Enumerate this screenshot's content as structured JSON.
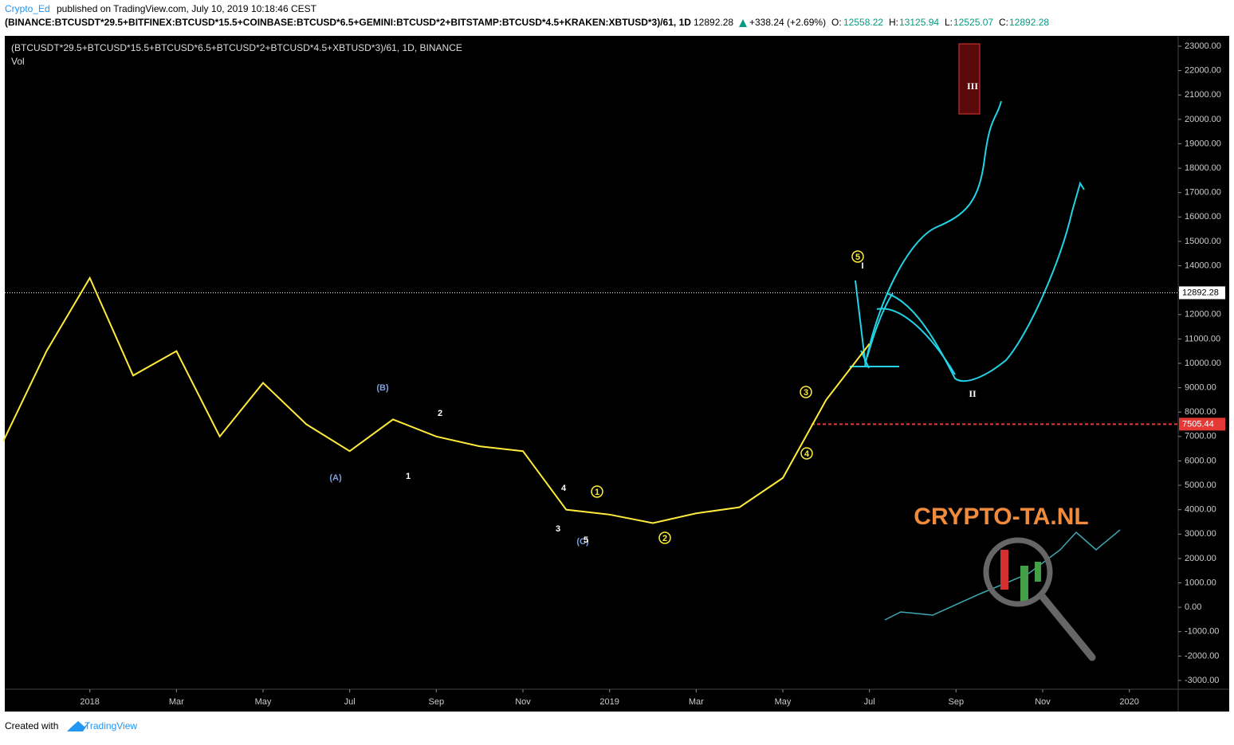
{
  "header": {
    "publisher": "Crypto_Ed",
    "published": "published on TradingView.com, July 10, 2019 10:18:46 CEST",
    "symbol": "(BINANCE:BTCUSDT*29.5+BITFINEX:BTCUSD*15.5+COINBASE:BTCUSD*6.5+GEMINI:BTCUSD*2+BITSTAMP:BTCUSD*4.5+KRAKEN:XBTUSD*3)/61, 1D",
    "last": "12892.28",
    "change": "+338.24 (+2.69%)",
    "open_label": "O:",
    "open": "12558.22",
    "high_label": "H:",
    "high": "13125.94",
    "low_label": "L:",
    "low": "12525.07",
    "close_label": "C:",
    "close": "12892.28"
  },
  "chart_data": {
    "type": "line",
    "legend_title": "(BTCUSDT*29.5+BTCUSD*15.5+BTCUSD*6.5+BTCUSD*2+BTCUSD*4.5+XBTUSD*3)/61, 1D, BINANCE",
    "volume_label": "Vol",
    "x": [
      "2017-11",
      "2017-12",
      "2018-01",
      "2018-02",
      "2018-03",
      "2018-04",
      "2018-05",
      "2018-06",
      "2018-07",
      "2018-08",
      "2018-09",
      "2018-10",
      "2018-11",
      "2018-12",
      "2019-01",
      "2019-02",
      "2019-03",
      "2019-04",
      "2019-05",
      "2019-06",
      "2019-07"
    ],
    "series": [
      {
        "color": "#ffeb3b",
        "values": [
          6800,
          10500,
          13500,
          9500,
          10500,
          7000,
          9200,
          7500,
          6400,
          7700,
          7000,
          6600,
          6400,
          4000,
          3800,
          3450,
          3850,
          4100,
          5300,
          8500,
          10800
        ]
      }
    ],
    "xlim": [
      "2017-11",
      "2020-02"
    ],
    "xticks": [
      {
        "value": "2018-01",
        "label": "2018"
      },
      {
        "value": "2018-03",
        "label": "Mar"
      },
      {
        "value": "2018-05",
        "label": "May"
      },
      {
        "value": "2018-07",
        "label": "Jul"
      },
      {
        "value": "2018-09",
        "label": "Sep"
      },
      {
        "value": "2018-11",
        "label": "Nov"
      },
      {
        "value": "2019-01",
        "label": "2019"
      },
      {
        "value": "2019-03",
        "label": "Mar"
      },
      {
        "value": "2019-05",
        "label": "May"
      },
      {
        "value": "2019-07",
        "label": "Jul"
      },
      {
        "value": "2019-09",
        "label": "Sep"
      },
      {
        "value": "2019-11",
        "label": "Nov"
      },
      {
        "value": "2020-01",
        "label": "2020"
      }
    ],
    "ylim": [
      -3360,
      23425
    ],
    "yticks": [
      {
        "value": -3000,
        "label": "-3000.00"
      },
      {
        "value": -2000,
        "label": "-2000.00"
      },
      {
        "value": -1000,
        "label": "-1000.00"
      },
      {
        "value": 0,
        "label": "0.00"
      },
      {
        "value": 1000,
        "label": "1000.00"
      },
      {
        "value": 2000,
        "label": "2000.00"
      },
      {
        "value": 3000,
        "label": "3000.00"
      },
      {
        "value": 4000,
        "label": "4000.00"
      },
      {
        "value": 5000,
        "label": "5000.00"
      },
      {
        "value": 6000,
        "label": "6000.00"
      },
      {
        "value": 7000,
        "label": "7000.00"
      },
      {
        "value": 8000,
        "label": "8000.00"
      },
      {
        "value": 9000,
        "label": "9000.00"
      },
      {
        "value": 10000,
        "label": "10000.00"
      },
      {
        "value": 11000,
        "label": "11000.00"
      },
      {
        "value": 12000,
        "label": "12000.00"
      },
      {
        "value": 13000,
        "label": "13000.00"
      },
      {
        "value": 14000,
        "label": "14000.00"
      },
      {
        "value": 15000,
        "label": "15000.00"
      },
      {
        "value": 16000,
        "label": "16000.00"
      },
      {
        "value": 17000,
        "label": "17000.00"
      },
      {
        "value": 18000,
        "label": "18000.00"
      },
      {
        "value": 19000,
        "label": "19000.00"
      },
      {
        "value": 20000,
        "label": "20000.00"
      },
      {
        "value": 21000,
        "label": "21000.00"
      },
      {
        "value": 22000,
        "label": "22000.00"
      },
      {
        "value": 23000,
        "label": "23000.00"
      }
    ],
    "grid": false,
    "price_lines": [
      {
        "value": 12892.28,
        "color": "#ffffff",
        "style": "dotted"
      },
      {
        "value": 7505.44,
        "color": "#e53935",
        "style": "dashed"
      }
    ],
    "annotations": [
      "(A)",
      "(B)",
      "(C)",
      "1",
      "2",
      "3",
      "4",
      "5",
      "1",
      "2",
      "3",
      "4",
      "5",
      "I",
      "II",
      "III"
    ]
  },
  "watermark": "CRYPTO-TA.NL",
  "footer": {
    "created": "Created with",
    "brand": "TradingView"
  }
}
